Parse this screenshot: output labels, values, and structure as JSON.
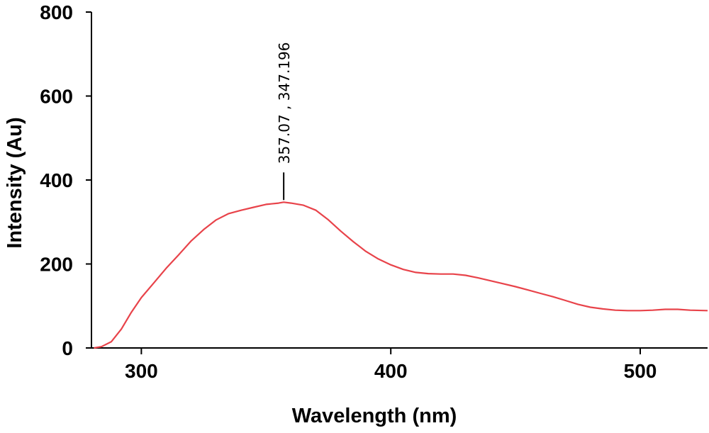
{
  "chart_data": {
    "type": "line",
    "title": "",
    "xlabel": "Wavelength (nm)",
    "ylabel": "Intensity (Au)",
    "xlim": [
      280,
      527
    ],
    "ylim": [
      0,
      800
    ],
    "x_ticks": [
      300,
      400,
      500
    ],
    "y_ticks": [
      0,
      200,
      400,
      600,
      800
    ],
    "x_tick_labels": [
      "300",
      "400",
      "500"
    ],
    "y_tick_labels": [
      "0",
      "200",
      "400",
      "600",
      "800"
    ],
    "grid": false,
    "legend": "none",
    "series": [
      {
        "color": "#e8434a",
        "x": [
          281,
          284,
          288,
          292,
          296,
          300,
          305,
          310,
          315,
          320,
          325,
          330,
          335,
          340,
          345,
          350,
          355,
          357.07,
          360,
          365,
          370,
          375,
          380,
          385,
          390,
          395,
          400,
          405,
          410,
          415,
          420,
          425,
          430,
          435,
          440,
          445,
          450,
          455,
          460,
          465,
          470,
          475,
          480,
          485,
          490,
          495,
          500,
          505,
          510,
          515,
          520,
          527
        ],
        "y": [
          0,
          3,
          15,
          45,
          85,
          120,
          155,
          190,
          222,
          255,
          282,
          305,
          320,
          328,
          335,
          342,
          345,
          347.196,
          345,
          340,
          328,
          305,
          278,
          253,
          230,
          212,
          198,
          187,
          180,
          177,
          176,
          176,
          173,
          167,
          160,
          153,
          146,
          138,
          130,
          122,
          113,
          104,
          97,
          93,
          90,
          89,
          89,
          90,
          92,
          92,
          90,
          89
        ]
      }
    ],
    "annotations": [
      {
        "text": "357.07 , 347.196",
        "x": 357.07,
        "y": 347.196
      }
    ]
  }
}
